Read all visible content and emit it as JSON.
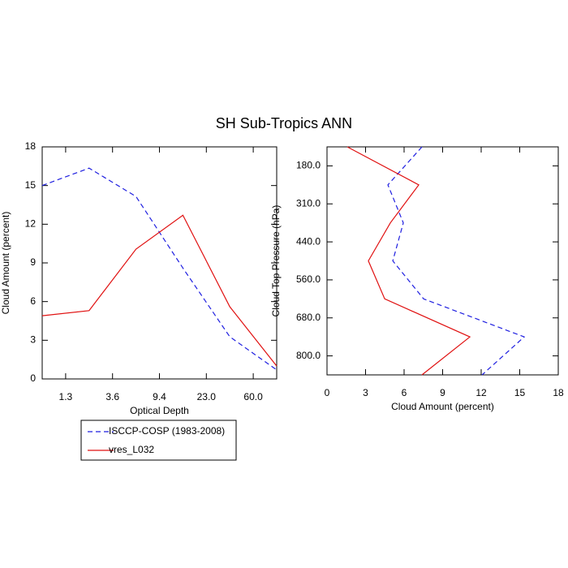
{
  "title": "SH Sub-Tropics ANN",
  "chart_data": [
    {
      "type": "line",
      "xlabel": "Optical Depth",
      "ylabel": "Cloud Amount (percent)",
      "x": [
        0,
        1,
        2,
        3,
        4,
        5
      ],
      "xlim": [
        0,
        5
      ],
      "xticks": [
        {
          "value": 0.5,
          "label": "1.3"
        },
        {
          "value": 1.5,
          "label": "3.6"
        },
        {
          "value": 2.5,
          "label": "9.4"
        },
        {
          "value": 3.5,
          "label": "23.0"
        },
        {
          "value": 4.5,
          "label": "60.0"
        }
      ],
      "ylim": [
        0,
        18
      ],
      "yticks": [
        0,
        3,
        6,
        9,
        12,
        15,
        18
      ],
      "series": [
        {
          "name": "ISCCP-COSP (1983-2008)",
          "color": "#1f1fe0",
          "line_style": "dashed",
          "values": [
            15.0,
            16.35,
            14.15,
            8.6,
            3.27,
            0.7
          ]
        },
        {
          "name": "vres_L032",
          "color": "#e01010",
          "line_style": "solid",
          "values": [
            4.9,
            5.3,
            10.07,
            12.7,
            5.6,
            1.0
          ]
        }
      ]
    },
    {
      "type": "line",
      "orientation": "horizontal",
      "xlabel": "Cloud Amount (percent)",
      "ylabel": "Cloud Top Pressure (hPa)",
      "y": [
        0,
        1,
        2,
        3,
        4,
        5,
        6
      ],
      "ylim": [
        6,
        0
      ],
      "yticks": [
        {
          "value": 0.5,
          "label": "180.0"
        },
        {
          "value": 1.5,
          "label": "310.0"
        },
        {
          "value": 2.5,
          "label": "440.0"
        },
        {
          "value": 3.5,
          "label": "560.0"
        },
        {
          "value": 4.5,
          "label": "680.0"
        },
        {
          "value": 5.5,
          "label": "800.0"
        }
      ],
      "xlim": [
        0,
        18
      ],
      "xticks": [
        0,
        3,
        6,
        9,
        12,
        15,
        18
      ],
      "series": [
        {
          "color": "#1f1fe0",
          "line_style": "dashed",
          "values": [
            7.39,
            4.74,
            5.94,
            5.12,
            7.52,
            15.35,
            12.07
          ]
        },
        {
          "color": "#e01010",
          "line_style": "solid",
          "values": [
            1.58,
            7.14,
            4.93,
            3.22,
            4.49,
            11.12,
            7.39
          ]
        }
      ]
    }
  ]
}
